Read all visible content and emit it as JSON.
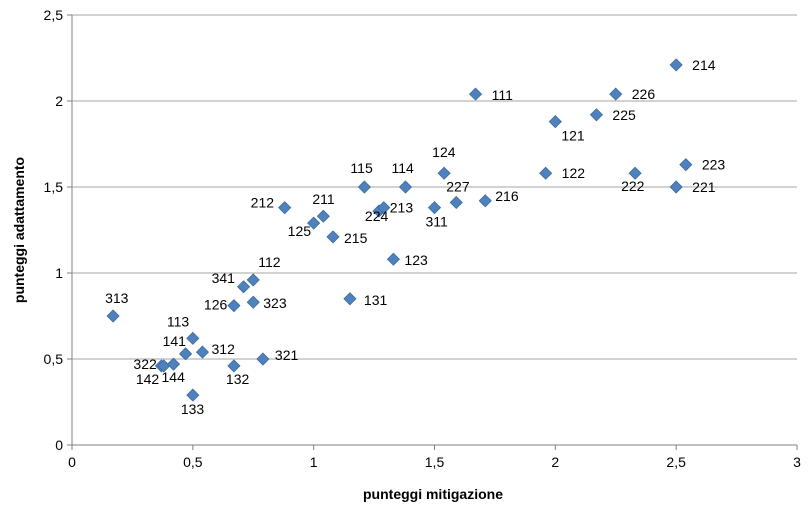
{
  "chart_data": {
    "type": "scatter",
    "title": "",
    "xlabel": "punteggi mitigazione",
    "ylabel": "punteggi adattamento",
    "xlim": [
      0,
      3
    ],
    "ylim": [
      0,
      2.5
    ],
    "grid": "horizontal",
    "marker": "diamond",
    "marker_color": "#4F81BD",
    "xticks": [
      "0",
      "0,5",
      "1",
      "1,5",
      "2",
      "2,5",
      "3"
    ],
    "yticks": [
      "0",
      "0,5",
      "1",
      "1,5",
      "2",
      "2,5"
    ],
    "points": [
      {
        "label": "313",
        "x": 0.17,
        "y": 0.75
      },
      {
        "label": "322",
        "x": 0.37,
        "y": 0.46
      },
      {
        "label": "142",
        "x": 0.38,
        "y": 0.46
      },
      {
        "label": "144",
        "x": 0.42,
        "y": 0.47
      },
      {
        "label": "141",
        "x": 0.47,
        "y": 0.53
      },
      {
        "label": "113",
        "x": 0.5,
        "y": 0.62
      },
      {
        "label": "133",
        "x": 0.5,
        "y": 0.29
      },
      {
        "label": "312",
        "x": 0.54,
        "y": 0.54
      },
      {
        "label": "132",
        "x": 0.67,
        "y": 0.46
      },
      {
        "label": "126",
        "x": 0.67,
        "y": 0.81
      },
      {
        "label": "341",
        "x": 0.71,
        "y": 0.92
      },
      {
        "label": "323",
        "x": 0.75,
        "y": 0.83
      },
      {
        "label": "112",
        "x": 0.75,
        "y": 0.96
      },
      {
        "label": "321",
        "x": 0.79,
        "y": 0.5
      },
      {
        "label": "212",
        "x": 0.88,
        "y": 1.38
      },
      {
        "label": "125",
        "x": 1.0,
        "y": 1.29
      },
      {
        "label": "211",
        "x": 1.04,
        "y": 1.33
      },
      {
        "label": "215",
        "x": 1.08,
        "y": 1.21
      },
      {
        "label": "131",
        "x": 1.15,
        "y": 0.85
      },
      {
        "label": "115",
        "x": 1.21,
        "y": 1.5
      },
      {
        "label": "224",
        "x": 1.27,
        "y": 1.36
      },
      {
        "label": "213",
        "x": 1.29,
        "y": 1.38
      },
      {
        "label": "123",
        "x": 1.33,
        "y": 1.08
      },
      {
        "label": "114",
        "x": 1.38,
        "y": 1.5
      },
      {
        "label": "311",
        "x": 1.5,
        "y": 1.38
      },
      {
        "label": "124",
        "x": 1.54,
        "y": 1.58
      },
      {
        "label": "227",
        "x": 1.59,
        "y": 1.41
      },
      {
        "label": "111",
        "x": 1.67,
        "y": 2.04
      },
      {
        "label": "216",
        "x": 1.71,
        "y": 1.42
      },
      {
        "label": "122",
        "x": 1.96,
        "y": 1.58
      },
      {
        "label": "121",
        "x": 2.0,
        "y": 1.88
      },
      {
        "label": "225",
        "x": 2.17,
        "y": 1.92
      },
      {
        "label": "226",
        "x": 2.25,
        "y": 2.04
      },
      {
        "label": "222",
        "x": 2.33,
        "y": 1.58
      },
      {
        "label": "214",
        "x": 2.5,
        "y": 2.21
      },
      {
        "label": "221",
        "x": 2.5,
        "y": 1.5
      },
      {
        "label": "223",
        "x": 2.54,
        "y": 1.63
      }
    ]
  }
}
